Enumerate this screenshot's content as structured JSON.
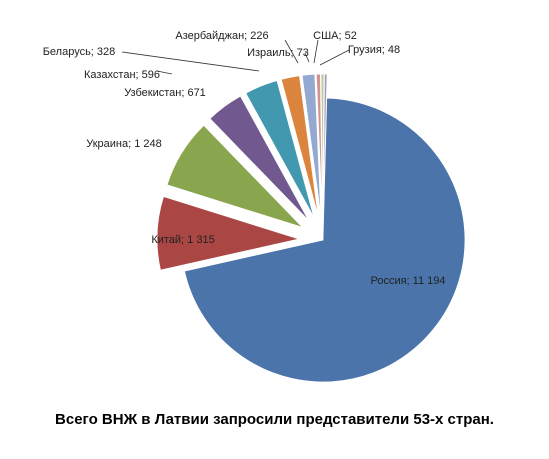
{
  "chart_data": {
    "type": "pie",
    "title": "",
    "caption": "Всего ВНЖ в Латвии запросили представители 53-х стран.",
    "slices": [
      {
        "label": "Россия",
        "value": 11194,
        "value_label": "11 194",
        "color": "#4A74AA"
      },
      {
        "label": "Китай",
        "value": 1315,
        "value_label": "1 315",
        "color": "#AA4643"
      },
      {
        "label": "Украина",
        "value": 1248,
        "value_label": "1 248",
        "color": "#89A54E"
      },
      {
        "label": "Узбекистан",
        "value": 671,
        "value_label": "671",
        "color": "#71588F"
      },
      {
        "label": "Казахстан",
        "value": 596,
        "value_label": "596",
        "color": "#4198AF"
      },
      {
        "label": "Беларусь",
        "value": 328,
        "value_label": "328",
        "color": "#DB843D"
      },
      {
        "label": "Азербайджан",
        "value": 226,
        "value_label": "226",
        "color": "#93A9CF"
      },
      {
        "label": "Израиль",
        "value": 73,
        "value_label": "73",
        "color": "#D19392"
      },
      {
        "label": "США",
        "value": 52,
        "value_label": "52",
        "color": "#B9CD96"
      },
      {
        "label": "Грузия",
        "value": 48,
        "value_label": "48",
        "color": "#A99BBD"
      }
    ],
    "separator": "; ",
    "legend": "none"
  }
}
